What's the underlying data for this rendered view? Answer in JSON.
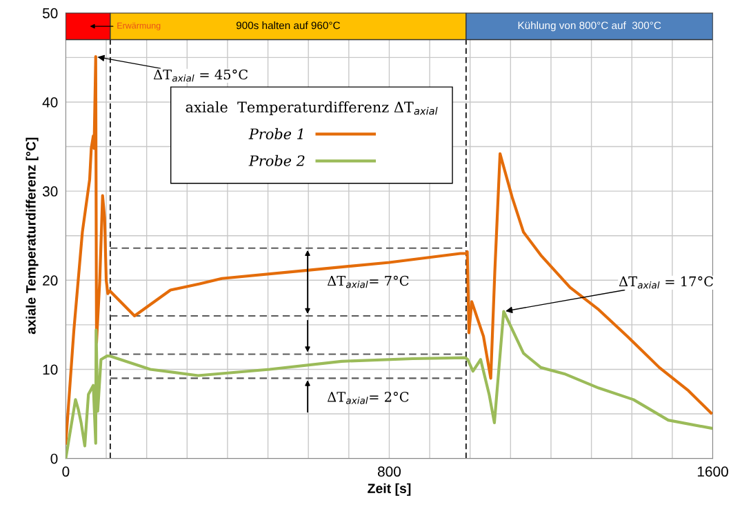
{
  "chart_data": {
    "type": "line",
    "xlabel": "Zeit [s]",
    "ylabel": "axiale Temperaturdifferenz [°C]",
    "legend_title": "axiale  Temperaturdifferenz ΔT$_{axial}$",
    "xlim": [
      0,
      1600
    ],
    "ylim": [
      0,
      50
    ],
    "xticks": [
      0,
      {
        "value": 100,
        "label": null
      },
      {
        "value": 200,
        "label": null
      },
      {
        "value": 300,
        "label": null
      },
      {
        "value": 400,
        "label": null
      },
      {
        "value": 500,
        "label": null
      },
      {
        "value": 600,
        "label": null
      },
      {
        "value": 700,
        "label": null
      },
      800,
      {
        "value": 900,
        "label": null
      },
      {
        "value": 1000,
        "label": null
      },
      {
        "value": 1100,
        "label": null
      },
      {
        "value": 1200,
        "label": null
      },
      {
        "value": 1300,
        "label": null
      },
      {
        "value": 1400,
        "label": null
      },
      {
        "value": 1500,
        "label": null
      },
      1600
    ],
    "yticks": [
      0,
      {
        "value": 5,
        "label": null
      },
      10,
      {
        "value": 15,
        "label": null
      },
      20,
      {
        "value": 25,
        "label": null
      },
      30,
      {
        "value": 35,
        "label": null
      },
      40,
      {
        "value": 45,
        "label": null
      },
      50
    ],
    "grid": true,
    "legend": "top",
    "marker": "none",
    "line_style": "solid",
    "series": [
      {
        "name": "Probe 1",
        "color": "#e46c0a",
        "x": [
          0,
          20,
          41,
          59,
          63,
          68,
          70,
          74,
          76,
          84,
          91,
          96,
          100,
          104,
          109,
          170,
          259,
          331,
          386,
          593,
          800,
          976,
          990,
          993,
          997,
          1004,
          1033,
          1051,
          1061,
          1074,
          1104,
          1132,
          1175,
          1247,
          1318,
          1389,
          1468,
          1540,
          1596
        ],
        "values": [
          1.7,
          14.4,
          25.4,
          31.3,
          34.8,
          36.2,
          34.8,
          45.1,
          13,
          20,
          29.5,
          27,
          20,
          18.5,
          18.8,
          16.0,
          18.9,
          19.6,
          20.2,
          21.1,
          22.0,
          23.0,
          23.0,
          23.2,
          14.1,
          17.6,
          13.7,
          9.0,
          20.9,
          34.2,
          29.3,
          25.4,
          22.8,
          19.2,
          16.7,
          13.7,
          10.2,
          7.6,
          5.1
        ]
      },
      {
        "name": "Probe 2",
        "color": "#9bbb59",
        "x": [
          0,
          24,
          31,
          38,
          47,
          56,
          68,
          74,
          75,
          79,
          87,
          102,
          108,
          209,
          327,
          504,
          682,
          858,
          988,
          994,
          1007,
          1026,
          1047,
          1060,
          1083,
          1132,
          1175,
          1233,
          1318,
          1404,
          1490,
          1596
        ],
        "values": [
          0,
          6.6,
          5.5,
          4.0,
          1.4,
          7.2,
          8.2,
          1.7,
          14.4,
          5.3,
          11.1,
          11.5,
          11.5,
          10.0,
          9.3,
          10.0,
          10.9,
          11.2,
          11.3,
          11.1,
          9.8,
          11.1,
          7.2,
          4.0,
          16.5,
          11.8,
          10.2,
          9.5,
          7.9,
          6.6,
          4.3,
          3.4
        ]
      }
    ],
    "bands": [
      {
        "axis": "x",
        "from": 0,
        "to": 110,
        "label": "Erwärmung",
        "color": "#ff0000"
      },
      {
        "axis": "x",
        "from": 110,
        "to": 990,
        "label": "900s halten auf 960°C",
        "color": "#ffc000"
      },
      {
        "axis": "x",
        "from": 990,
        "to": 1600,
        "label": "Kühlung von 800°C auf  300°C",
        "color": "#4f81bd"
      }
    ],
    "ref_lines": [
      {
        "axis": "x",
        "value": 110,
        "line_style": "dashed",
        "color": "#000000"
      },
      {
        "axis": "x",
        "value": 990,
        "line_style": "dashed",
        "color": "#000000"
      },
      {
        "axis": "y",
        "value": 23.6,
        "line_style": "dashed",
        "color": "#595959"
      },
      {
        "axis": "y",
        "value": 16.0,
        "line_style": "dashed",
        "color": "#595959"
      },
      {
        "axis": "y",
        "value": 11.7,
        "line_style": "dashed",
        "color": "#595959"
      },
      {
        "axis": "y",
        "value": 9.0,
        "line_style": "dashed",
        "color": "#595959"
      }
    ],
    "annotations": [
      {
        "text": "ΔT$_{axial}$ = 45°C",
        "x": 74,
        "y": 45.1
      },
      {
        "text": "ΔT$_{axial}$ = 17°C",
        "x": 1083,
        "y": 16.5
      },
      "ΔT$_{axial}$= 7°C",
      "ΔT$_{axial}$= 2°C"
    ]
  }
}
